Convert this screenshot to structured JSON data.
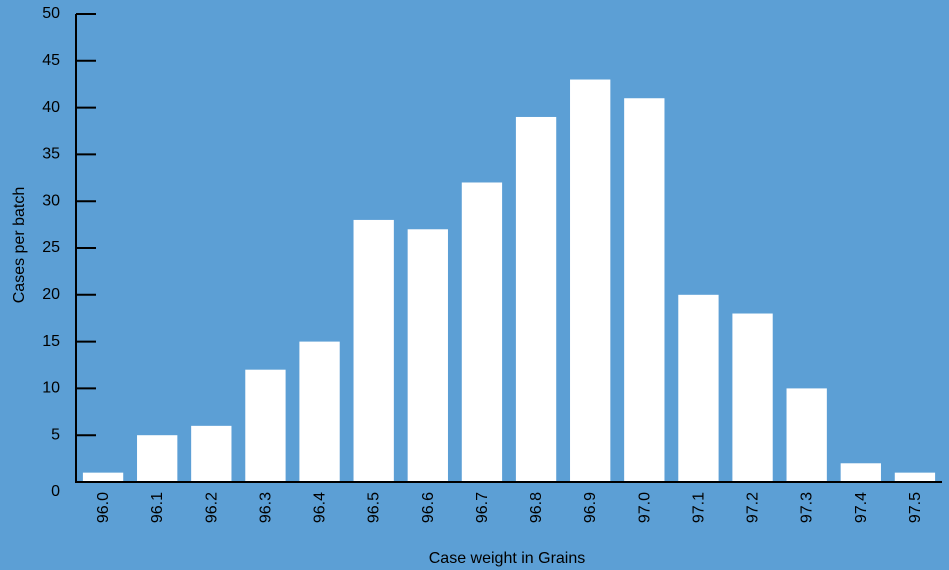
{
  "colors": {
    "background": "#5c9fd5",
    "bar": "#ffffff",
    "axis": "#000000",
    "text": "#000000"
  },
  "chart_data": {
    "type": "bar",
    "title": "",
    "xlabel": "Case weight in Grains",
    "ylabel": "Cases per batch",
    "categories": [
      "96.0",
      "96.1",
      "96.2",
      "96.3",
      "96.4",
      "96.5",
      "96.6",
      "96.7",
      "96.8",
      "96.9",
      "97.0",
      "97.1",
      "97.2",
      "97.3",
      "97.4",
      "97.5"
    ],
    "values": [
      1,
      5,
      6,
      12,
      15,
      28,
      27,
      32,
      39,
      43,
      41,
      20,
      18,
      10,
      2,
      1
    ],
    "ylim": [
      0,
      50
    ],
    "yticks": [
      0,
      5,
      10,
      15,
      20,
      25,
      30,
      35,
      40,
      45,
      50
    ],
    "grid": false,
    "x_tick_rotation": "vertical"
  }
}
